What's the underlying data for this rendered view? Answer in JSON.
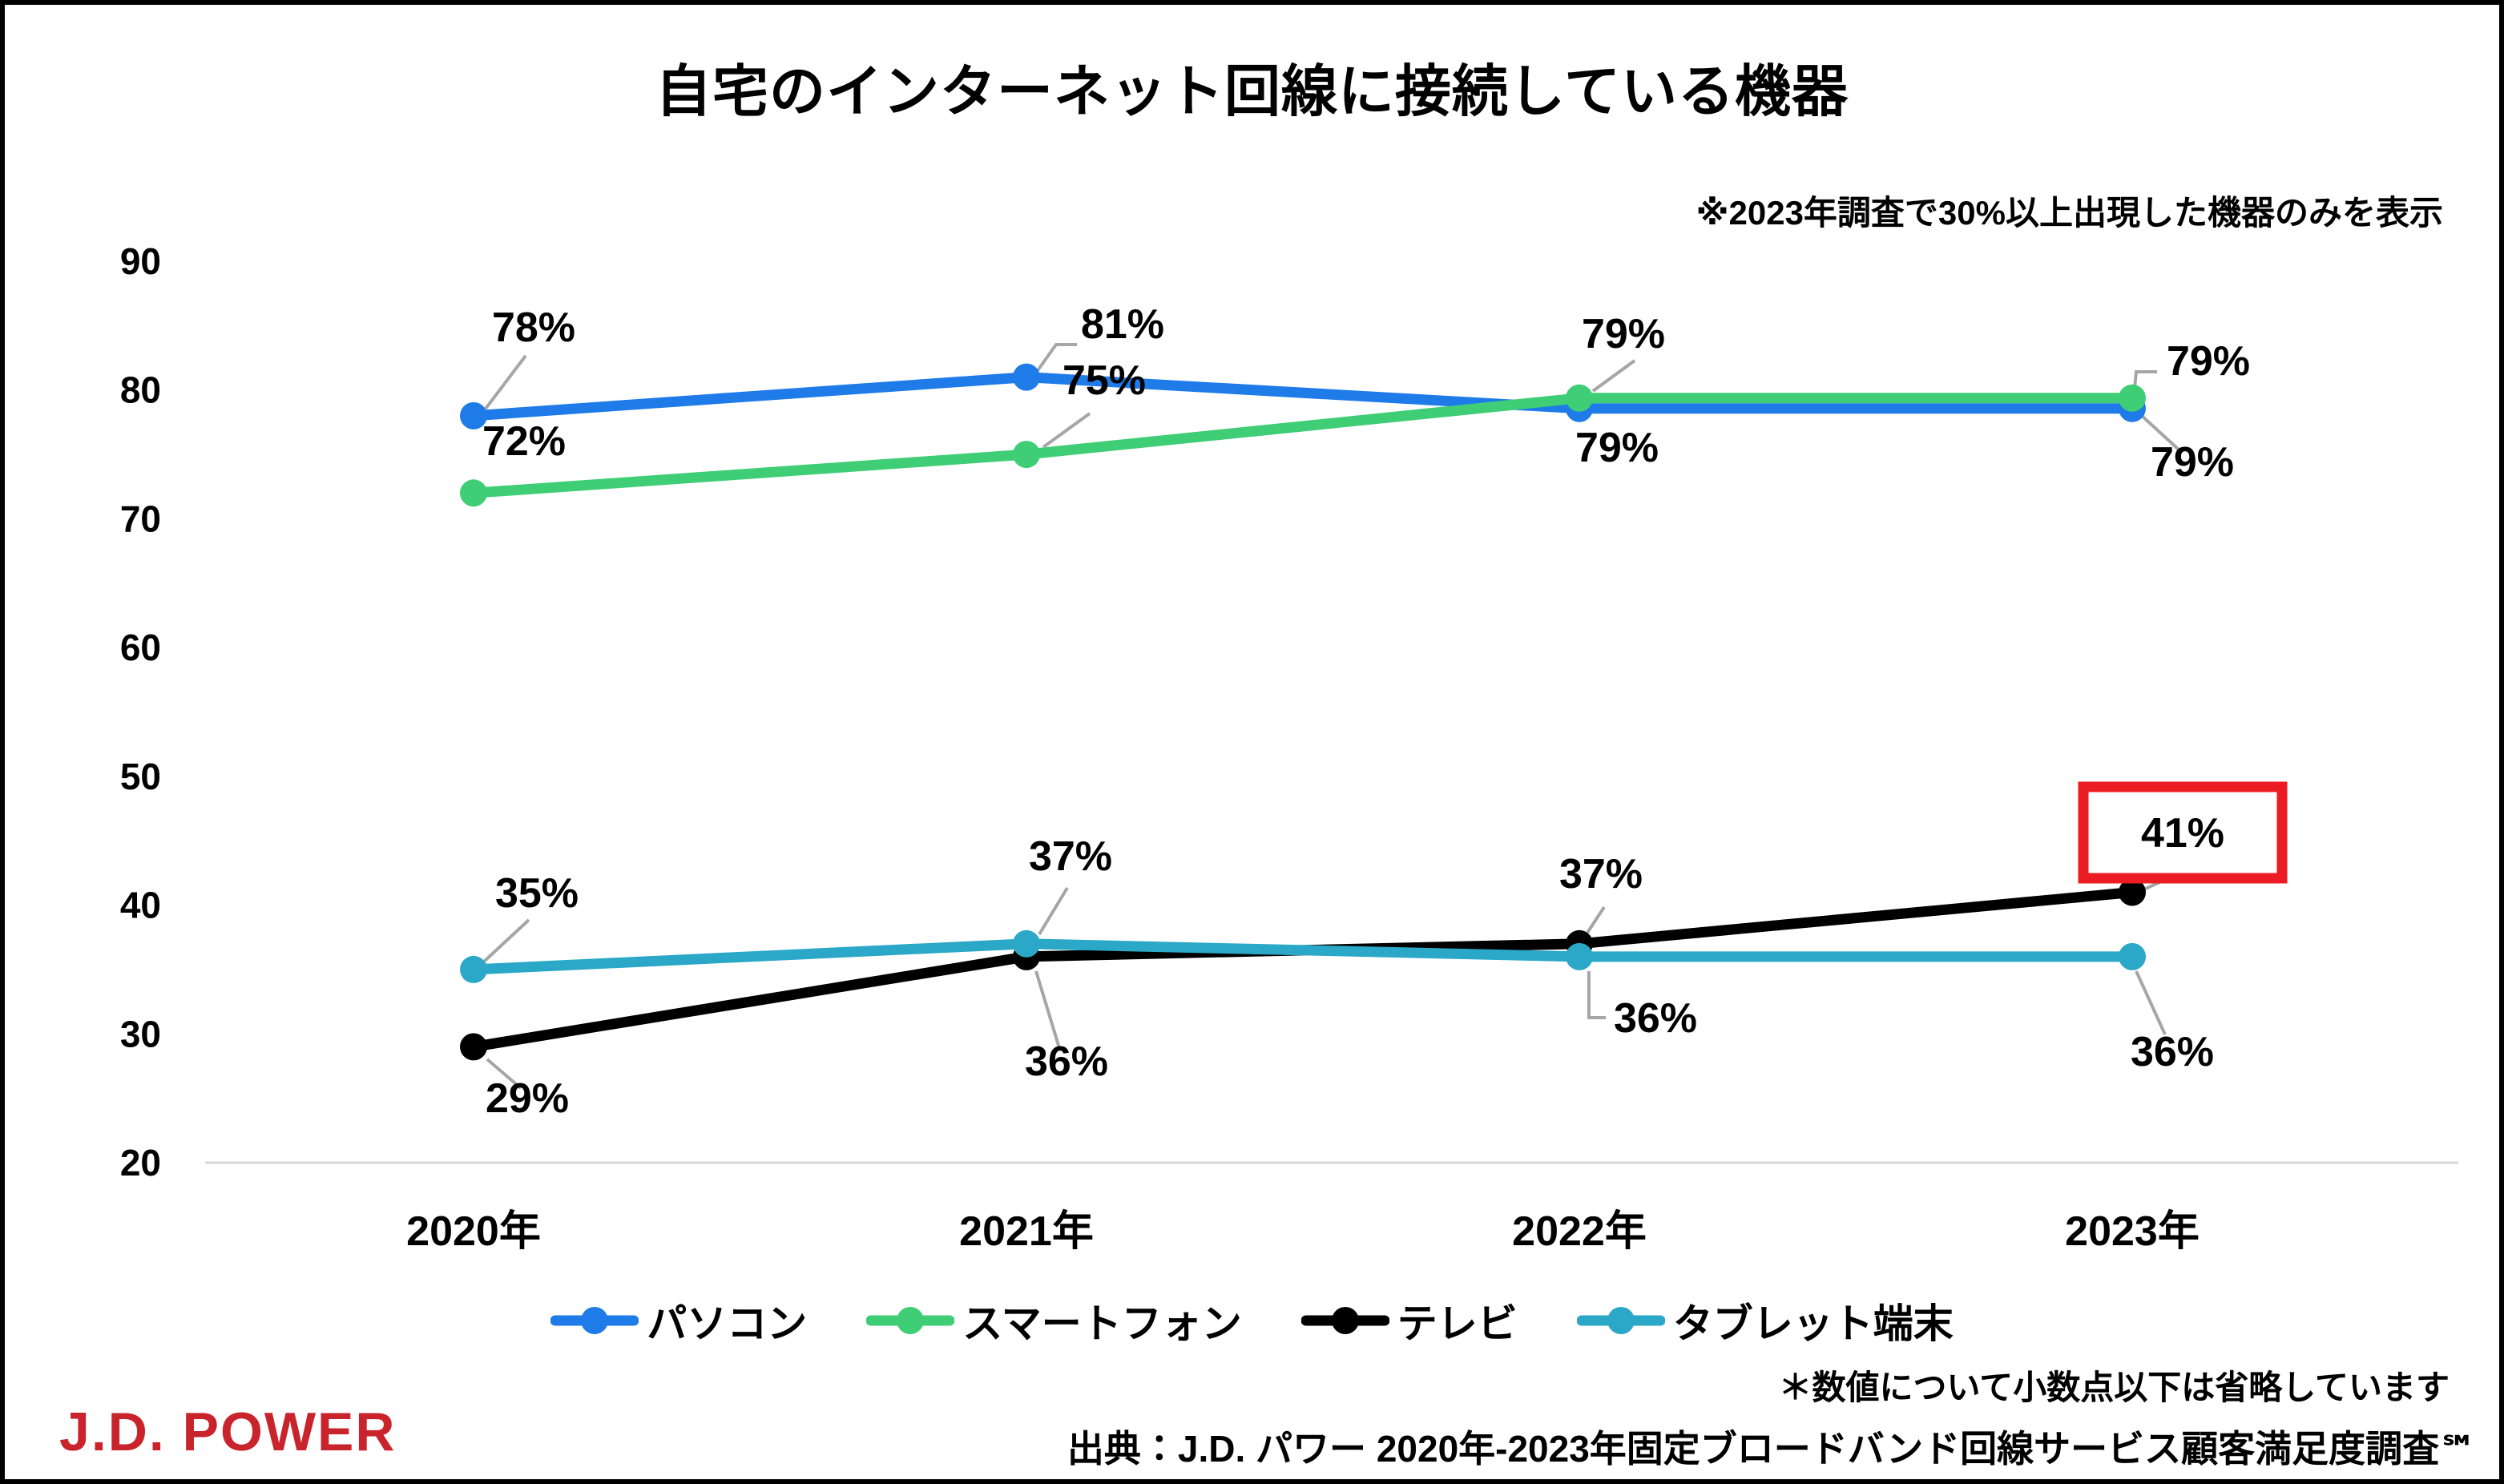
{
  "header": {
    "title": "自宅のインターネット回線に接続している機器",
    "note": "※2023年調査で30%以上出現した機器のみを表示"
  },
  "chart_data": {
    "type": "line",
    "title": "自宅のインターネット回線に接続している機器",
    "unit": "%",
    "categories": [
      "2020年",
      "2021年",
      "2022年",
      "2023年"
    ],
    "y_ticks": [
      90,
      80,
      70,
      60,
      50,
      40,
      30,
      20
    ],
    "ylim": [
      20,
      90
    ],
    "grid": "baseline only at 20",
    "legend_position": "bottom",
    "data_labels": true,
    "series": [
      {
        "key": "pc",
        "name": "パソコン",
        "color": "#1E7BE8",
        "values": [
          78,
          81,
          79,
          79
        ]
      },
      {
        "key": "smartphone",
        "name": "スマートフォン",
        "color": "#3FCE76",
        "values": [
          72,
          75,
          79,
          79
        ]
      },
      {
        "key": "tv",
        "name": "テレビ",
        "color": "#000000",
        "values": [
          29,
          36,
          37,
          41
        ]
      },
      {
        "key": "tablet",
        "name": "タブレット端末",
        "color": "#2BA7C7",
        "values": [
          35,
          37,
          36,
          36
        ]
      }
    ],
    "highlight": {
      "series": "テレビ",
      "category": "2023年",
      "value": 41,
      "style": "red-box",
      "box_color": "#EC1C24"
    },
    "leader_line_color": "#A6A6A6",
    "baseline_color": "#D8D8D8"
  },
  "footer": {
    "footnote": "＊数値について小数点以下は省略しています",
    "source": "出典：J.D. パワー 2020年-2023年固定ブロードバンド回線サービス顧客満足度調査℠",
    "logo": "J.D. POWER"
  }
}
